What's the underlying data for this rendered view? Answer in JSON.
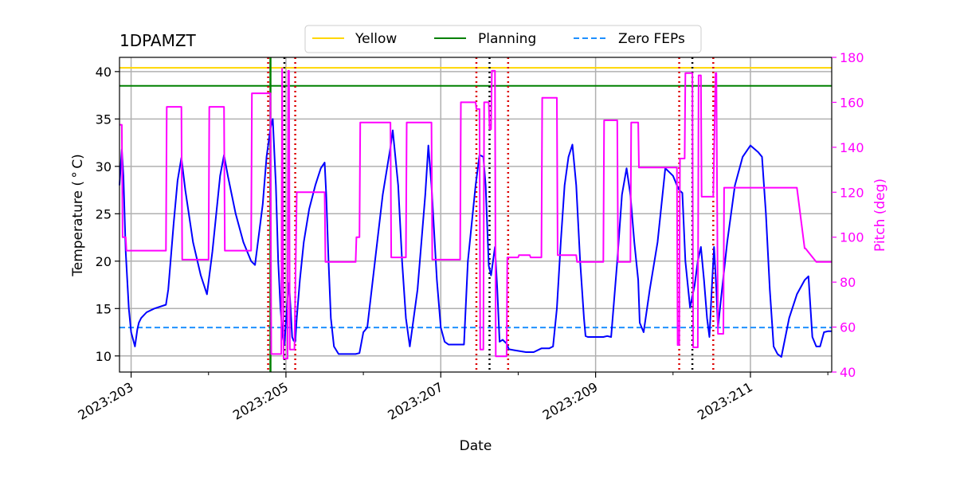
{
  "chart_data": {
    "type": "line",
    "title": "1DPAMZT",
    "xlabel": "Date",
    "ylabel": "Temperature ($^\\circ$C)",
    "y2label": "Pitch (deg)",
    "ylabel_display": "Temperature ( ° C)",
    "xlim": [
      202.85,
      212.05
    ],
    "ylim": [
      8.3,
      41.5
    ],
    "y2lim": [
      40,
      180
    ],
    "x_ticks": [
      203,
      205,
      207,
      209,
      211
    ],
    "x_tick_labels": [
      "2023:203",
      "2023:205",
      "2023:207",
      "2023:209",
      "2023:211"
    ],
    "x_minor_ticks": [
      204,
      206,
      208,
      210,
      212
    ],
    "y_ticks": [
      10,
      15,
      20,
      25,
      30,
      35,
      40
    ],
    "y2_ticks": [
      40,
      60,
      80,
      100,
      120,
      140,
      160,
      180
    ],
    "grid": true,
    "legend_position": "top-center",
    "legend": [
      {
        "name": "Yellow",
        "style": "solid",
        "color": "#FFD700"
      },
      {
        "name": "Planning",
        "style": "solid",
        "color": "#008000"
      },
      {
        "name": "Zero FEPs",
        "style": "dashed",
        "color": "#1E90FF"
      }
    ],
    "hlines": {
      "yellow": 40.4,
      "planning": 38.5,
      "zero_feps": 13.0
    },
    "vlines": {
      "green": [
        204.8
      ],
      "black_dotted": [
        204.98,
        207.63,
        210.25
      ],
      "red_dotted": [
        204.77,
        205.12,
        207.46,
        207.87,
        210.08,
        210.52
      ]
    },
    "colors": {
      "temperature": "#0000FF",
      "pitch": "#FF00FF",
      "yellow": "#FFD700",
      "planning": "#008000",
      "zero_feps": "#1E90FF",
      "red_lines": "#DD0000",
      "black_lines": "#000000",
      "grid": "#b0b0b0"
    },
    "series": [
      {
        "name": "1DPAMZT",
        "axis": "left",
        "x": [
          202.85,
          202.88,
          202.9,
          202.93,
          202.97,
          203.0,
          203.05,
          203.08,
          203.1,
          203.13,
          203.2,
          203.3,
          203.45,
          203.48,
          203.55,
          203.6,
          203.65,
          203.7,
          203.8,
          203.9,
          203.98,
          204.05,
          204.15,
          204.2,
          204.25,
          204.35,
          204.45,
          204.55,
          204.6,
          204.7,
          204.75,
          204.8,
          204.83,
          204.87,
          204.9,
          204.93,
          204.96,
          204.98,
          205.0,
          205.02,
          205.04,
          205.06,
          205.08,
          205.1,
          205.12,
          205.14,
          205.18,
          205.23,
          205.3,
          205.38,
          205.45,
          205.5,
          205.52,
          205.55,
          205.58,
          205.62,
          205.68,
          205.8,
          205.9,
          205.95,
          206.0,
          206.05,
          206.15,
          206.25,
          206.35,
          206.38,
          206.45,
          206.5,
          206.55,
          206.6,
          206.7,
          206.8,
          206.84,
          206.88,
          206.95,
          207.0,
          207.05,
          207.1,
          207.2,
          207.25,
          207.3,
          207.35,
          207.45,
          207.5,
          207.55,
          207.58,
          207.62,
          207.65,
          207.7,
          207.73,
          207.76,
          207.8,
          207.85,
          207.88,
          207.95,
          208.1,
          208.2,
          208.3,
          208.4,
          208.45,
          208.5,
          208.55,
          208.6,
          208.65,
          208.7,
          208.75,
          208.8,
          208.85,
          208.87,
          208.9,
          209.0,
          209.1,
          209.15,
          209.2,
          209.28,
          209.34,
          209.4,
          209.45,
          209.5,
          209.55,
          209.57,
          209.62,
          209.7,
          209.8,
          209.9,
          210.0,
          210.05,
          210.08,
          210.12,
          210.16,
          210.22,
          210.28,
          210.32,
          210.36,
          210.4,
          210.44,
          210.47,
          210.5,
          210.53,
          210.56,
          210.58,
          210.62,
          210.7,
          210.8,
          210.9,
          211.0,
          211.1,
          211.15,
          211.2,
          211.25,
          211.3,
          211.35,
          211.4,
          211.5,
          211.6,
          211.7,
          211.75,
          211.8,
          211.85,
          211.9,
          211.95,
          212.0,
          212.05
        ],
        "y": [
          28.0,
          31.8,
          29.0,
          21.0,
          15.0,
          12.5,
          11.0,
          12.8,
          13.5,
          14.0,
          14.6,
          15.0,
          15.4,
          17.0,
          24.0,
          28.5,
          30.9,
          27.5,
          22.0,
          18.5,
          16.5,
          21.0,
          29.0,
          31.2,
          29.0,
          25.0,
          22.0,
          20.0,
          19.6,
          26.0,
          31.0,
          34.0,
          35.0,
          28.0,
          20.0,
          15.0,
          12.0,
          11.2,
          13.5,
          16.0,
          17.7,
          15.0,
          12.0,
          11.6,
          11.5,
          14.0,
          18.0,
          22.0,
          25.5,
          28.0,
          29.8,
          30.4,
          27.0,
          20.0,
          14.0,
          11.0,
          10.2,
          10.2,
          10.2,
          10.3,
          12.5,
          13.0,
          20.0,
          27.0,
          32.0,
          33.8,
          28.0,
          20.0,
          14.0,
          11.0,
          17.0,
          27.0,
          32.2,
          28.0,
          18.0,
          13.0,
          11.5,
          11.2,
          11.2,
          11.2,
          11.2,
          20.0,
          28.0,
          31.2,
          31.0,
          28.0,
          19.5,
          18.5,
          21.5,
          17.0,
          11.5,
          11.7,
          11.3,
          10.7,
          10.6,
          10.4,
          10.4,
          10.8,
          10.8,
          11.0,
          15.0,
          22.0,
          28.0,
          31.0,
          32.3,
          28.0,
          20.0,
          14.0,
          12.1,
          12.0,
          12.0,
          12.0,
          12.1,
          12.0,
          20.0,
          27.0,
          29.8,
          27.0,
          22.0,
          18.0,
          13.5,
          12.5,
          17.0,
          22.0,
          29.8,
          29.0,
          28.0,
          27.5,
          27.2,
          20.0,
          15.1,
          17.5,
          20.0,
          21.5,
          18.0,
          14.0,
          12.0,
          17.0,
          21.5,
          17.0,
          13.0,
          16.0,
          22.0,
          28.0,
          31.0,
          32.2,
          31.5,
          31.0,
          25.0,
          17.0,
          11.0,
          10.2,
          9.9,
          14.0,
          16.5,
          18.0,
          18.4,
          12.0,
          11.0,
          11.0,
          12.5,
          12.6,
          12.6
        ]
      },
      {
        "name": "Pitch",
        "axis": "right",
        "x": [
          202.85,
          202.88,
          202.89,
          202.93,
          202.94,
          202.98,
          202.99,
          203.3,
          203.45,
          203.46,
          203.65,
          203.66,
          204.0,
          204.01,
          204.2,
          204.21,
          204.55,
          204.56,
          204.8,
          204.81,
          204.83,
          204.84,
          204.94,
          204.95,
          204.97,
          205.0,
          205.02,
          205.03,
          205.04,
          205.05,
          205.06,
          205.1,
          205.11,
          205.14,
          205.15,
          205.2,
          205.25,
          205.5,
          205.51,
          205.75,
          205.9,
          205.91,
          205.95,
          205.96,
          205.98,
          205.99,
          206.3,
          206.35,
          206.36,
          206.55,
          206.56,
          206.8,
          206.88,
          206.89,
          207.1,
          207.25,
          207.26,
          207.45,
          207.46,
          207.5,
          207.51,
          207.55,
          207.56,
          207.62,
          207.63,
          207.65,
          207.66,
          207.7,
          207.71,
          207.72,
          207.85,
          207.86,
          208.0,
          208.01,
          208.15,
          208.16,
          208.3,
          208.31,
          208.5,
          208.51,
          208.75,
          208.76,
          208.85,
          208.86,
          208.88,
          208.89,
          209.05,
          209.1,
          209.11,
          209.28,
          209.29,
          209.45,
          209.46,
          209.55,
          209.56,
          209.75,
          209.76,
          210.0,
          210.05,
          210.06,
          210.08,
          210.09,
          210.15,
          210.16,
          210.25,
          210.26,
          210.32,
          210.33,
          210.36,
          210.37,
          210.4,
          210.41,
          210.44,
          210.45,
          210.48,
          210.49,
          210.52,
          210.55,
          210.56,
          210.58,
          210.65,
          210.66,
          211.0,
          211.01,
          211.05,
          211.13,
          211.14,
          211.3,
          211.33,
          211.34,
          211.6,
          211.7,
          211.71,
          211.85,
          211.86,
          212.05
        ],
        "y": [
          150,
          150,
          100,
          100,
          94,
          94,
          94,
          94,
          94,
          158,
          158,
          90,
          90,
          158,
          158,
          94,
          94,
          164,
          164,
          48,
          48,
          48,
          48,
          175,
          46,
          46,
          46,
          174,
          174,
          50,
          50,
          50,
          50,
          120,
          120,
          120,
          120,
          120,
          89,
          89,
          89,
          100,
          100,
          151,
          151,
          151,
          151,
          151,
          91,
          91,
          151,
          151,
          151,
          90,
          90,
          90,
          160,
          160,
          157,
          157,
          50,
          50,
          160,
          160,
          148,
          148,
          174,
          174,
          47,
          47,
          47,
          91,
          91,
          92,
          92,
          91,
          91,
          162,
          162,
          92,
          92,
          89,
          89,
          89,
          89,
          89,
          89,
          89,
          152,
          152,
          89,
          89,
          151,
          151,
          131,
          131,
          131,
          131,
          131,
          52,
          52,
          135,
          135,
          173,
          173,
          51,
          51,
          172,
          172,
          118,
          118,
          118,
          118,
          118,
          118,
          118,
          118,
          173,
          173,
          57,
          57,
          122,
          122,
          122,
          122,
          122,
          122,
          122,
          122,
          122,
          122,
          95,
          95,
          89,
          89,
          89
        ]
      }
    ]
  }
}
